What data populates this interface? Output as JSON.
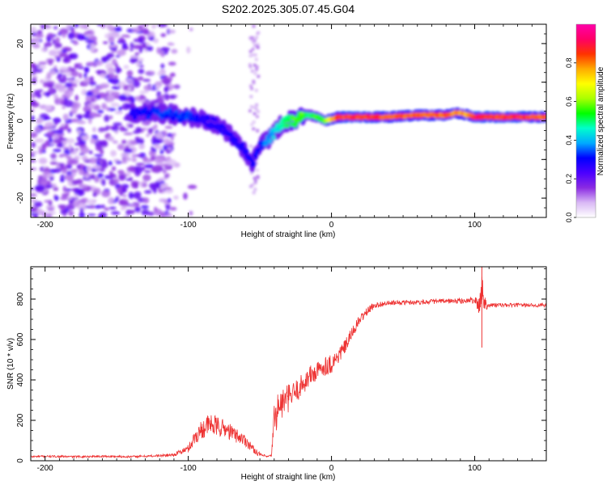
{
  "figure": {
    "title": "S202.2025.305.07.45.G04"
  },
  "chart_data": [
    {
      "type": "heatmap",
      "name": "spectrogram",
      "xlabel": "Height of straight line (km)",
      "ylabel": "Frequency (Hz)",
      "xlim": [
        -210,
        150
      ],
      "ylim": [
        -25,
        25
      ],
      "xticks": [
        -200,
        -100,
        0,
        100
      ],
      "yticks": [
        -20,
        -10,
        0,
        10,
        20
      ],
      "colorbar": {
        "label": "Normalized spectral amplitude",
        "range": [
          0,
          1
        ],
        "ticks": [
          0.0,
          0.2,
          0.4,
          0.6,
          0.8
        ],
        "tick_labels": [
          "0.0",
          "0.2",
          "0.4",
          "0.6",
          "0.8"
        ],
        "colormap": [
          "#ffffff",
          "#d9b8f5",
          "#8a2be2",
          "#4b00ff",
          "#0000ff",
          "#00aaff",
          "#00ffcc",
          "#00ff00",
          "#aaff00",
          "#ffff00",
          "#ffaa00",
          "#ff3300",
          "#ff0066",
          "#ff00aa"
        ]
      },
      "ridge": {
        "x": [
          -140,
          -120,
          -100,
          -90,
          -80,
          -70,
          -60,
          -55,
          -50,
          -45,
          -40,
          -35,
          -30,
          -25,
          -20,
          -15,
          -10,
          -5,
          0,
          5,
          10,
          20,
          40,
          60,
          80,
          85,
          90,
          95,
          100,
          110,
          130,
          150
        ],
        "freq": [
          2,
          2,
          1,
          0.5,
          -1,
          -4,
          -8,
          -11,
          -6,
          -5,
          -3,
          -1,
          0,
          0,
          1.5,
          1.5,
          1,
          0,
          0.5,
          1,
          1,
          1,
          1,
          1.5,
          1.5,
          2,
          2,
          1.5,
          1,
          1,
          1,
          1
        ],
        "amplitude": [
          0.3,
          0.35,
          0.35,
          0.3,
          0.3,
          0.3,
          0.3,
          0.3,
          0.35,
          0.4,
          0.45,
          0.5,
          0.55,
          0.6,
          0.6,
          0.55,
          0.6,
          0.6,
          0.8,
          0.9,
          0.95,
          0.95,
          0.9,
          0.9,
          0.9,
          0.85,
          0.85,
          0.85,
          0.95,
          0.95,
          0.95,
          0.9
        ]
      },
      "noise_region": {
        "x_range": [
          -210,
          -110
        ],
        "freq_range": [
          -25,
          25
        ],
        "amplitude": 0.15
      }
    },
    {
      "type": "line",
      "name": "snr",
      "xlabel": "Height of straight line (km)",
      "ylabel": "SNR (10 * v/v)",
      "xlim": [
        -210,
        150
      ],
      "ylim": [
        0,
        960
      ],
      "xticks": [
        -200,
        -100,
        0,
        100
      ],
      "yticks": [
        0,
        200,
        400,
        600,
        800
      ],
      "color": "#ee3333",
      "series": [
        {
          "name": "SNR",
          "x": [
            -210,
            -200,
            -180,
            -160,
            -140,
            -120,
            -110,
            -100,
            -95,
            -90,
            -85,
            -80,
            -75,
            -70,
            -65,
            -60,
            -55,
            -50,
            -45,
            -42,
            -40,
            -38,
            -35,
            -30,
            -25,
            -20,
            -15,
            -10,
            -5,
            0,
            5,
            10,
            15,
            20,
            25,
            30,
            40,
            60,
            80,
            90,
            100,
            103,
            105,
            107,
            110,
            120,
            150
          ],
          "y": [
            20,
            22,
            20,
            22,
            20,
            25,
            30,
            60,
            120,
            160,
            180,
            170,
            160,
            140,
            120,
            100,
            60,
            30,
            20,
            25,
            200,
            250,
            280,
            310,
            340,
            380,
            420,
            440,
            470,
            480,
            520,
            570,
            640,
            700,
            740,
            770,
            780,
            785,
            790,
            790,
            795,
            760,
            850,
            780,
            770,
            770,
            770
          ],
          "noise": [
            5,
            5,
            5,
            5,
            5,
            6,
            8,
            20,
            40,
            50,
            55,
            50,
            45,
            40,
            35,
            30,
            20,
            10,
            5,
            5,
            90,
            90,
            80,
            70,
            60,
            55,
            55,
            50,
            50,
            50,
            40,
            35,
            30,
            25,
            20,
            15,
            12,
            12,
            12,
            14,
            16,
            40,
            100,
            40,
            12,
            10,
            10
          ]
        }
      ]
    }
  ]
}
